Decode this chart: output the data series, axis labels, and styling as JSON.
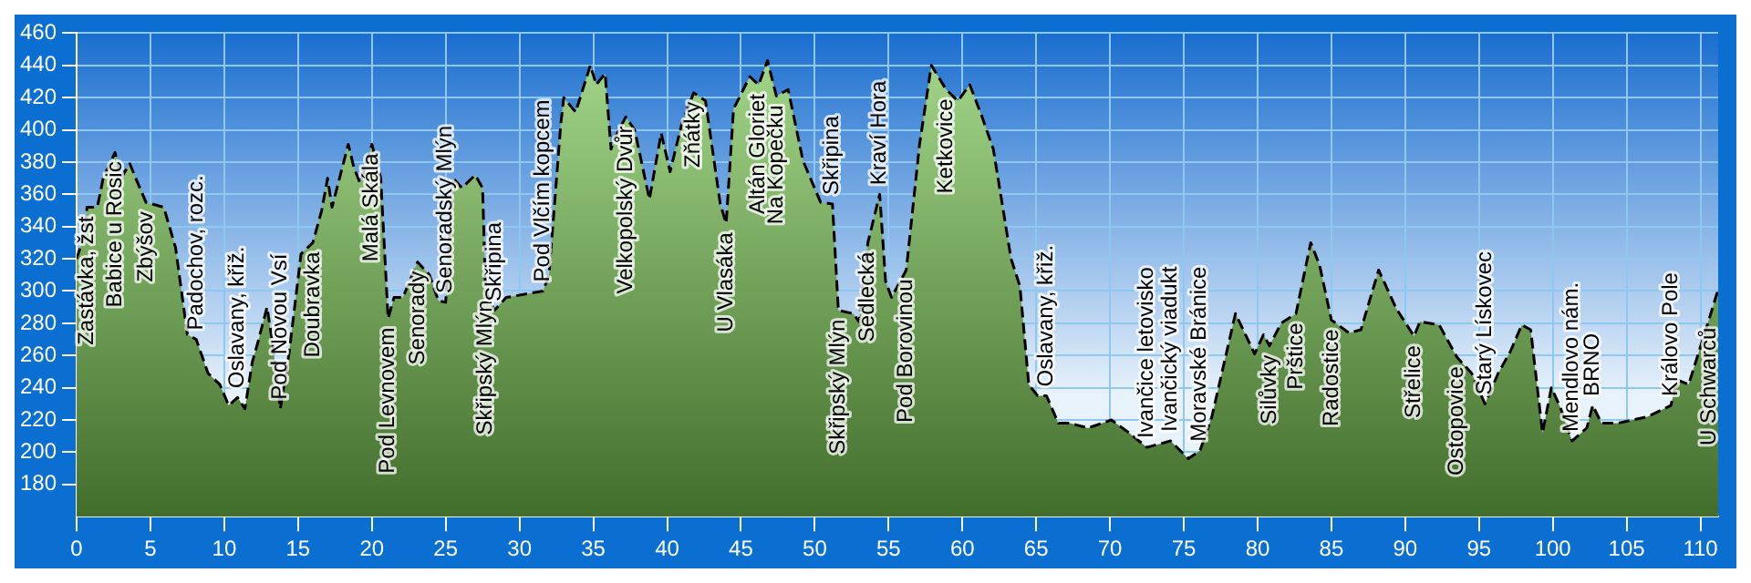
{
  "chart_data": {
    "type": "area",
    "x": [
      0,
      0.6,
      0.7,
      1.4,
      1.8,
      2.6,
      3.0,
      3.6,
      4.0,
      4.7,
      5.9,
      6.7,
      7.5,
      8.1,
      8.9,
      9.7,
      10.3,
      10.9,
      11.4,
      11.9,
      12.3,
      12.9,
      13.3,
      13.8,
      14.4,
      15.2,
      16.0,
      16.6,
      17.0,
      17.3,
      18.4,
      18.8,
      19.2,
      20.0,
      20.6,
      21.1,
      21.5,
      22.1,
      23.1,
      23.9,
      24.5,
      25.0,
      25.5,
      26.1,
      27.0,
      27.5,
      27.7,
      28.3,
      29.1,
      31.6,
      32.0,
      32.8,
      33.0,
      33.8,
      34.8,
      35.2,
      35.8,
      36.2,
      36.4,
      37.2,
      37.8,
      38.8,
      39.6,
      40.2,
      41.0,
      41.8,
      42.6,
      43.6,
      44.0,
      44.5,
      45.6,
      46.2,
      46.8,
      47.4,
      48.2,
      49.2,
      50.4,
      51.2,
      51.6,
      52.6,
      53.0,
      53.6,
      54.4,
      54.8,
      55.2,
      56.2,
      57.1,
      57.9,
      58.9,
      59.7,
      60.5,
      61.3,
      62.1,
      63.3,
      63.9,
      64.5,
      65.1,
      65.7,
      66.5,
      67.3,
      68.5,
      70.1,
      71.3,
      72.5,
      74.1,
      75.3,
      76.1,
      76.9,
      78.5,
      79.8,
      80.4,
      80.8,
      81.6,
      82.6,
      83.6,
      84.2,
      85.0,
      86.2,
      87.0,
      88.2,
      89.4,
      90.6,
      91.0,
      92.3,
      93.5,
      94.5,
      95.4,
      96.3,
      97.1,
      97.9,
      98.5,
      99.3,
      99.9,
      100.5,
      101.3,
      102.3,
      102.7,
      103.3,
      104.4,
      106.4,
      108.0,
      108.4,
      109.2,
      110.6,
      111.2
    ],
    "series": [
      {
        "color": "#78c850",
        "values": [
          320,
          337,
          352,
          352,
          370,
          386,
          370,
          379,
          370,
          355,
          352,
          327,
          273,
          270,
          249,
          242,
          229,
          234,
          227,
          256,
          269,
          290,
          266,
          227,
          262,
          323,
          330,
          350,
          370,
          352,
          391,
          376,
          367,
          391,
          370,
          283,
          296,
          296,
          318,
          310,
          294,
          293,
          370,
          364,
          372,
          364,
          300,
          288,
          296,
          300,
          310,
          404,
          420,
          411,
          440,
          428,
          435,
          388,
          394,
          408,
          400,
          357,
          398,
          374,
          404,
          423,
          418,
          354,
          342,
          413,
          433,
          428,
          443,
          421,
          425,
          381,
          355,
          354,
          288,
          286,
          281,
          330,
          360,
          306,
          296,
          313,
          391,
          440,
          425,
          418,
          428,
          409,
          388,
          320,
          303,
          242,
          235,
          235,
          218,
          218,
          215,
          220,
          212,
          203,
          207,
          196,
          201,
          222,
          286,
          261,
          273,
          266,
          280,
          286,
          330,
          316,
          282,
          274,
          276,
          313,
          289,
          272,
          281,
          279,
          259,
          249,
          230,
          249,
          262,
          279,
          276,
          212,
          240,
          228,
          207,
          215,
          229,
          218,
          218,
          222,
          229,
          245,
          242,
          283,
          301
        ]
      }
    ],
    "xlim": [
      0,
      111.2
    ],
    "ylim": [
      160,
      460
    ],
    "xticks": [
      0,
      5,
      10,
      15,
      20,
      25,
      30,
      35,
      40,
      45,
      50,
      55,
      60,
      65,
      70,
      75,
      80,
      85,
      90,
      95,
      100,
      105,
      110
    ],
    "yticks": [
      180,
      200,
      220,
      240,
      260,
      280,
      300,
      320,
      340,
      360,
      380,
      400,
      420,
      440,
      460
    ],
    "grid": true,
    "marker": "none",
    "line_style": "dashed",
    "legend": false,
    "annotations": [
      {
        "text": "Zastávka, žst",
        "x": 0.7,
        "y": 352
      },
      {
        "text": "Babice u Rosic",
        "x": 2.6,
        "y": 386
      },
      {
        "text": "Zbýšov",
        "x": 4.7,
        "y": 355
      },
      {
        "text": "Padochov, rozc.",
        "x": 8.1,
        "y": 270
      },
      {
        "text": "Oslavany, křiž.",
        "x": 10.9,
        "y": 234
      },
      {
        "text": "Pod Novou Vsí",
        "x": 13.8,
        "y": 227
      },
      {
        "text": "Doubravka",
        "x": 16.0,
        "y": 330
      },
      {
        "text": "Malá Skála",
        "x": 20.0,
        "y": 391
      },
      {
        "text": "Pod Levnovem",
        "x": 21.1,
        "y": 283
      },
      {
        "text": "Senorady",
        "x": 23.1,
        "y": 318
      },
      {
        "text": "Senoradský Mlýn",
        "x": 25.0,
        "y": 293
      },
      {
        "text": "Skřipský Mlýn",
        "x": 27.7,
        "y": 300
      },
      {
        "text": "Skřipina",
        "x": 28.3,
        "y": 288
      },
      {
        "text": "Pod Vlčím kopcem",
        "x": 31.6,
        "y": 300
      },
      {
        "text": "Velkopolský Dvůr",
        "x": 37.2,
        "y": 408
      },
      {
        "text": "Zňátky",
        "x": 41.8,
        "y": 423
      },
      {
        "text": "U Vlasáka",
        "x": 44.0,
        "y": 342
      },
      {
        "text": "Altán Gloriet",
        "x": 46.2,
        "y": 428
      },
      {
        "text": "Na Kopečku",
        "x": 47.4,
        "y": 421
      },
      {
        "text": "Skřipský Mlýn",
        "x": 51.6,
        "y": 288
      },
      {
        "text": "Skřipina",
        "x": 51.2,
        "y": 354
      },
      {
        "text": "Sedlecká",
        "x": 53.6,
        "y": 330
      },
      {
        "text": "Kraví Hora",
        "x": 54.4,
        "y": 360
      },
      {
        "text": "Pod Borovinou",
        "x": 56.2,
        "y": 313
      },
      {
        "text": "Ketkovice",
        "x": 58.9,
        "y": 425
      },
      {
        "text": "Oslavany, křiž.",
        "x": 65.7,
        "y": 235
      },
      {
        "text": "Ivančice letovisko",
        "x": 72.5,
        "y": 203
      },
      {
        "text": "Ivančický viadukt",
        "x": 74.1,
        "y": 207
      },
      {
        "text": "Moravské Bránice",
        "x": 76.1,
        "y": 201
      },
      {
        "text": "Silůvky",
        "x": 80.8,
        "y": 266
      },
      {
        "text": "Prštice",
        "x": 82.6,
        "y": 286
      },
      {
        "text": "Radostice",
        "x": 85.0,
        "y": 282
      },
      {
        "text": "Střelice",
        "x": 90.6,
        "y": 272
      },
      {
        "text": "Ostopovice",
        "x": 93.5,
        "y": 259
      },
      {
        "text": "Starý Lískovec",
        "x": 95.4,
        "y": 230
      },
      {
        "text": "Mendlovo nám.",
        "x": 101.3,
        "y": 207
      },
      {
        "text": "BRNO",
        "x": 102.7,
        "y": 229
      },
      {
        "text": "Královo Pole",
        "x": 108.0,
        "y": 229
      },
      {
        "text": "U Schwarců",
        "x": 110.6,
        "y": 283
      }
    ]
  }
}
